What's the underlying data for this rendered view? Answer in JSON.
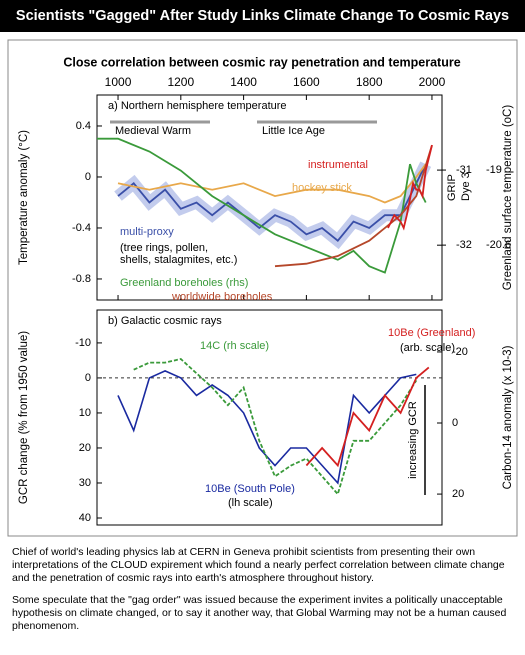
{
  "header": {
    "title": "Scientists \"Gagged\" After Study Links Climate Change To Cosmic Rays",
    "subtitle": "Close correlation between cosmic ray penetration and temperature"
  },
  "chart_data": [
    {
      "type": "line",
      "title": "a) Northern hemisphere temperature",
      "ylabel": "Temperature anomaly (°C)",
      "y2label": "Greenland surface temperature (oC)",
      "y2name": "GRIP",
      "y3name": "Dye 3",
      "xlim": [
        933,
        2032
      ],
      "xticks": [
        1000,
        1200,
        1400,
        1600,
        1800,
        2000
      ],
      "ylim": [
        -0.965,
        0.643
      ],
      "yticks": [
        0.4,
        0,
        -0.4,
        -0.8
      ],
      "y2lim": [
        -32.73,
        -30.0
      ],
      "y2ticks": [
        -31,
        -32
      ],
      "y3lim": [
        -21.77,
        -17.4
      ],
      "y3ticks": [
        -19,
        -20.6
      ],
      "annotations": [
        "Medieval Warm",
        "Little Ice Age",
        "(tree rings, pollen,",
        "shells, stalagmites, etc.)"
      ],
      "series": [
        {
          "name": "multi-proxy",
          "color": "#3a4fa8",
          "x": [
            1000,
            1050,
            1100,
            1150,
            1200,
            1250,
            1300,
            1350,
            1400,
            1450,
            1500,
            1550,
            1600,
            1650,
            1700,
            1750,
            1800,
            1850,
            1900,
            1950,
            1980
          ],
          "values": [
            -0.15,
            -0.05,
            -0.2,
            -0.1,
            -0.25,
            -0.2,
            -0.3,
            -0.2,
            -0.3,
            -0.4,
            -0.3,
            -0.35,
            -0.45,
            -0.4,
            -0.5,
            -0.35,
            -0.4,
            -0.3,
            -0.3,
            -0.05,
            0.1
          ]
        },
        {
          "name": "hockey stick",
          "color": "#e8a84a",
          "x": [
            1000,
            1100,
            1200,
            1300,
            1400,
            1500,
            1600,
            1700,
            1800,
            1850,
            1900,
            1950,
            1980
          ],
          "values": [
            -0.05,
            -0.1,
            -0.05,
            -0.1,
            -0.05,
            -0.15,
            -0.1,
            -0.1,
            -0.15,
            -0.2,
            -0.15,
            0.0,
            0.1
          ]
        },
        {
          "name": "Greenland boreholes (rhs)",
          "color": "#3a9a3a",
          "x": [
            933,
            1000,
            1100,
            1200,
            1300,
            1400,
            1500,
            1600,
            1700,
            1750,
            1800,
            1850,
            1900,
            1930,
            1950,
            1980
          ],
          "values": [
            0.3,
            0.3,
            0.2,
            0.05,
            -0.15,
            -0.3,
            -0.45,
            -0.55,
            -0.65,
            -0.58,
            -0.7,
            -0.75,
            -0.35,
            0.1,
            -0.05,
            -0.2
          ]
        },
        {
          "name": "worldwide boreholes",
          "color": "#b5472a",
          "x": [
            1500,
            1600,
            1700,
            1800,
            1900,
            1950,
            2000
          ],
          "values": [
            -0.7,
            -0.68,
            -0.62,
            -0.5,
            -0.3,
            -0.15,
            0.25
          ]
        },
        {
          "name": "instrumental",
          "color": "#d42020",
          "x": [
            1860,
            1880,
            1900,
            1910,
            1920,
            1940,
            1950,
            1960,
            1970,
            1980,
            2000
          ],
          "values": [
            -0.4,
            -0.3,
            -0.35,
            -0.4,
            -0.3,
            -0.05,
            -0.1,
            -0.1,
            -0.15,
            0.05,
            0.25
          ]
        }
      ]
    },
    {
      "type": "line",
      "title": "b) Galactic cosmic rays",
      "ylabel": "GCR change (% from 1950 value)",
      "y2label": "Carbon-14 anomaly (x 10-3)",
      "xlim": [
        933,
        2032
      ],
      "ylim": [
        -19.4,
        42
      ],
      "yticks": [
        -10,
        0,
        10,
        20,
        30,
        40
      ],
      "y_inverted": true,
      "zero_line": true,
      "y2lim": [
        -31.8,
        28.7
      ],
      "y2ticks": [
        -20,
        0,
        20
      ],
      "y2_inverted": true,
      "annotations": [
        "(arb. scale)",
        "(lh scale)",
        "increasing GCR"
      ],
      "series": [
        {
          "name": "10Be (South Pole)",
          "color": "#1a2aa0",
          "x": [
            1000,
            1050,
            1100,
            1150,
            1200,
            1250,
            1300,
            1350,
            1400,
            1450,
            1500,
            1550,
            1600,
            1650,
            1700,
            1750,
            1800,
            1850,
            1900,
            1950
          ],
          "values": [
            5,
            15,
            0,
            -2,
            0,
            5,
            2,
            5,
            10,
            20,
            25,
            20,
            20,
            25,
            30,
            5,
            10,
            5,
            0,
            -1
          ]
        },
        {
          "name": "14C (rh scale)",
          "color": "#3a9a3a",
          "axis": "y2",
          "dashed": true,
          "x": [
            1050,
            1100,
            1150,
            1200,
            1250,
            1300,
            1350,
            1400,
            1450,
            1500,
            1550,
            1600,
            1650,
            1700,
            1750,
            1800,
            1850,
            1900,
            1950
          ],
          "values": [
            -15,
            -17,
            -17,
            -18,
            -14,
            -10,
            -5,
            -10,
            5,
            15,
            12,
            10,
            15,
            20,
            5,
            5,
            0,
            -5,
            -12
          ]
        },
        {
          "name": "10Be (Greenland)",
          "color": "#d42020",
          "x": [
            1600,
            1650,
            1700,
            1750,
            1800,
            1850,
            1900,
            1950,
            1990
          ],
          "values": [
            25,
            20,
            25,
            10,
            15,
            5,
            10,
            0,
            -3
          ]
        }
      ]
    }
  ],
  "paragraphs": [
    "Chief of world's leading physics lab at CERN in Geneva prohibit scientists from presenting their own interpretations of the CLOUD expirement which found a nearly perfect correlation between climate change and the penetration of cosmic rays into earth's atmosphere throughout history.",
    "Some speculate that  the \"gag order\" was issued because the experiment invites a politically unacceptable hypothesis on climate changed, or to say it another way, that Global Warming may not be a human caused phenomenom."
  ]
}
